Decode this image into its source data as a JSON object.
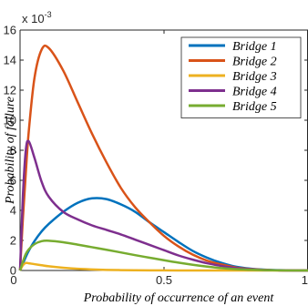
{
  "chart_data": {
    "type": "line",
    "xlabel": "Probability of occurrence of an event",
    "ylabel": "Probability of failure",
    "y_multiplier_label": "x 10",
    "y_multiplier_exponent": "-3",
    "xlim": [
      0,
      1
    ],
    "ylim": [
      0,
      16
    ],
    "x_ticks": [
      0,
      0.5,
      1
    ],
    "x_tick_labels": [
      "0",
      "0.5",
      "1"
    ],
    "y_ticks": [
      0,
      2,
      4,
      6,
      8,
      10,
      12,
      14,
      16
    ],
    "y_tick_labels": [
      "0",
      "2",
      "4",
      "6",
      "8",
      "10",
      "12",
      "14",
      "16"
    ],
    "grid": false,
    "legend_position": "top-right",
    "x": [
      0,
      0.01,
      0.02,
      0.03,
      0.05,
      0.075,
      0.1,
      0.15,
      0.2,
      0.25,
      0.3,
      0.35,
      0.4,
      0.45,
      0.5,
      0.55,
      0.6,
      0.65,
      0.7,
      0.75,
      0.8,
      0.85,
      0.9,
      0.95,
      1
    ],
    "series": [
      {
        "name": "Bridge 1",
        "color": "#0072BD",
        "values": [
          0,
          0.45,
          0.9,
          1.3,
          1.95,
          2.6,
          3.1,
          3.9,
          4.5,
          4.8,
          4.75,
          4.4,
          3.9,
          3.2,
          2.55,
          1.9,
          1.3,
          0.85,
          0.5,
          0.25,
          0.12,
          0.05,
          0.02,
          0.005,
          0
        ]
      },
      {
        "name": "Bridge 2",
        "color": "#D95319",
        "values": [
          0,
          3.5,
          6.5,
          9.2,
          12.8,
          14.7,
          14.8,
          13.3,
          11.2,
          9.1,
          7.2,
          5.5,
          4.2,
          3.2,
          2.3,
          1.6,
          1.05,
          0.65,
          0.4,
          0.2,
          0.1,
          0.04,
          0.01,
          0.002,
          0
        ]
      },
      {
        "name": "Bridge 3",
        "color": "#EDB120",
        "values": [
          0,
          0.35,
          0.5,
          0.48,
          0.42,
          0.35,
          0.28,
          0.18,
          0.11,
          0.07,
          0.04,
          0.025,
          0.015,
          0.008,
          0.004,
          0.002,
          0.001,
          0,
          0,
          0,
          0,
          0,
          0,
          0,
          0
        ]
      },
      {
        "name": "Bridge 4",
        "color": "#7E2F8E",
        "values": [
          0,
          5.0,
          8.0,
          8.6,
          7.5,
          5.9,
          4.9,
          3.9,
          3.4,
          3.0,
          2.7,
          2.4,
          2.05,
          1.7,
          1.35,
          1.0,
          0.72,
          0.48,
          0.3,
          0.17,
          0.08,
          0.03,
          0.01,
          0.002,
          0
        ]
      },
      {
        "name": "Bridge 5",
        "color": "#77AC30",
        "values": [
          0,
          0.6,
          1.1,
          1.4,
          1.75,
          1.95,
          1.98,
          1.88,
          1.72,
          1.55,
          1.38,
          1.2,
          1.02,
          0.85,
          0.68,
          0.52,
          0.38,
          0.26,
          0.16,
          0.09,
          0.05,
          0.02,
          0.006,
          0.001,
          0
        ]
      }
    ]
  }
}
